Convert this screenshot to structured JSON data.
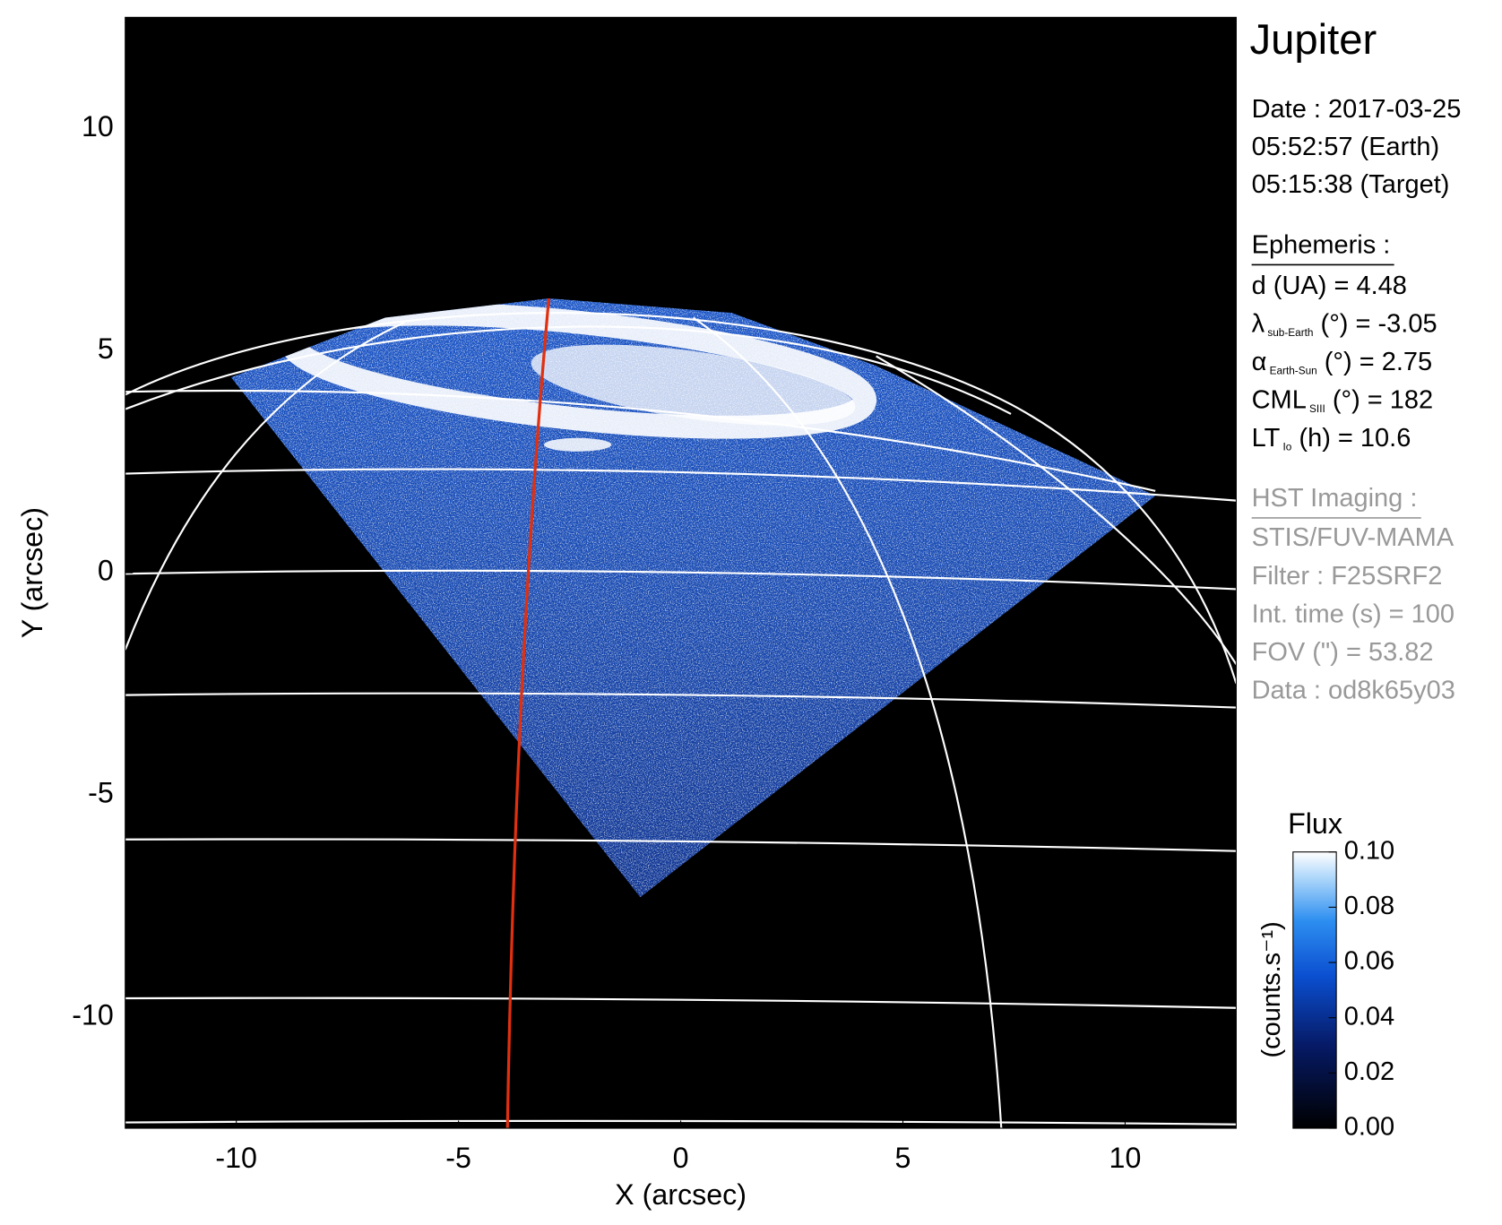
{
  "chart_data": {
    "type": "image",
    "title": "Jupiter",
    "xlabel": "X (arcsec)",
    "ylabel": "Y (arcsec)",
    "xlim": [
      -12.5,
      12.5
    ],
    "ylim": [
      -12.5,
      12.5
    ],
    "xticks": [
      -10,
      -5,
      0,
      5,
      10
    ],
    "yticks": [
      -10,
      -5,
      0,
      5,
      10
    ],
    "colorbar": {
      "title": "Flux",
      "label": "(counts.s⁻¹)",
      "lim": [
        0,
        0.1
      ],
      "ticks": [
        {
          "value": 0,
          "label": "0.00"
        },
        0.02,
        0.04,
        0.06,
        0.08,
        {
          "value": 0.1,
          "label": "0.10"
        }
      ]
    },
    "info": {
      "date": [
        "Date : 2017-03-25",
        "05:52:57 (Earth)",
        "05:15:38 (Target)"
      ],
      "ephemeris_title": "Ephemeris :",
      "ephemeris": [
        {
          "text": "d (UA)    = 4.48"
        },
        {
          "symbol": "λ",
          "sub": "sub-Earth",
          "text": " (°) = -3.05"
        },
        {
          "symbol": "α",
          "sub": "Earth-Sun",
          "text": " (°) = 2.75"
        },
        {
          "symbol": "CML",
          "sub": "SIII",
          "text": " (°) = 182"
        },
        {
          "symbol": "LT",
          "sub": "Io",
          "text": " (h) = 10.6"
        }
      ],
      "imaging_title": "HST Imaging :",
      "imaging": [
        "STIS/FUV-MAMA",
        "Filter : F25SRF2",
        "Int. time (s) = 100",
        "FOV (\") = 53.82",
        "Data : od8k65y03"
      ]
    }
  }
}
